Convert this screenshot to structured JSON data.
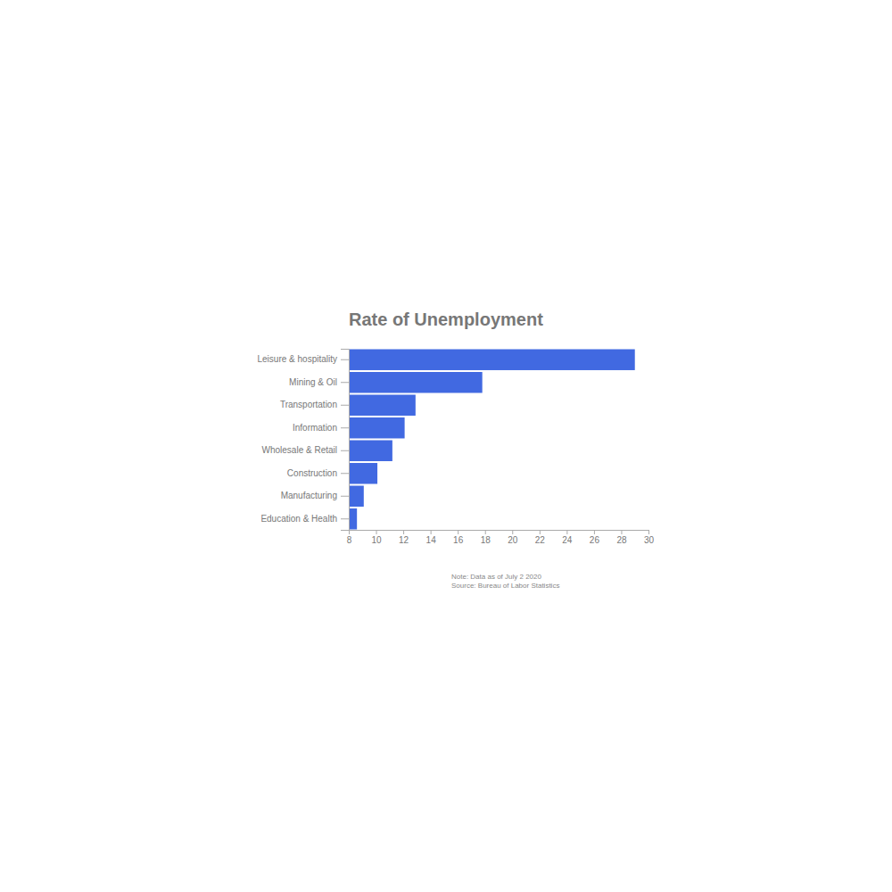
{
  "chart_data": {
    "type": "bar",
    "title": "Rate of Unemployment",
    "orientation": "horizontal",
    "categories": [
      "Leisure & hospitality",
      "Mining & Oil",
      "Transportation",
      "Information",
      "Wholesale & Retail",
      "Construction",
      "Manufacturing",
      "Education & Health"
    ],
    "values": [
      29.0,
      17.8,
      12.9,
      12.1,
      11.2,
      10.1,
      9.1,
      8.6
    ],
    "color": "#4169e1",
    "xlim": [
      8,
      30
    ],
    "xticks": [
      8,
      10,
      12,
      14,
      16,
      18,
      20,
      22,
      24,
      26,
      28,
      30
    ],
    "grid": false,
    "annotations": [
      "Note: Data as of July 2 2020",
      "Source: Bureau of Labor Statistics"
    ]
  }
}
